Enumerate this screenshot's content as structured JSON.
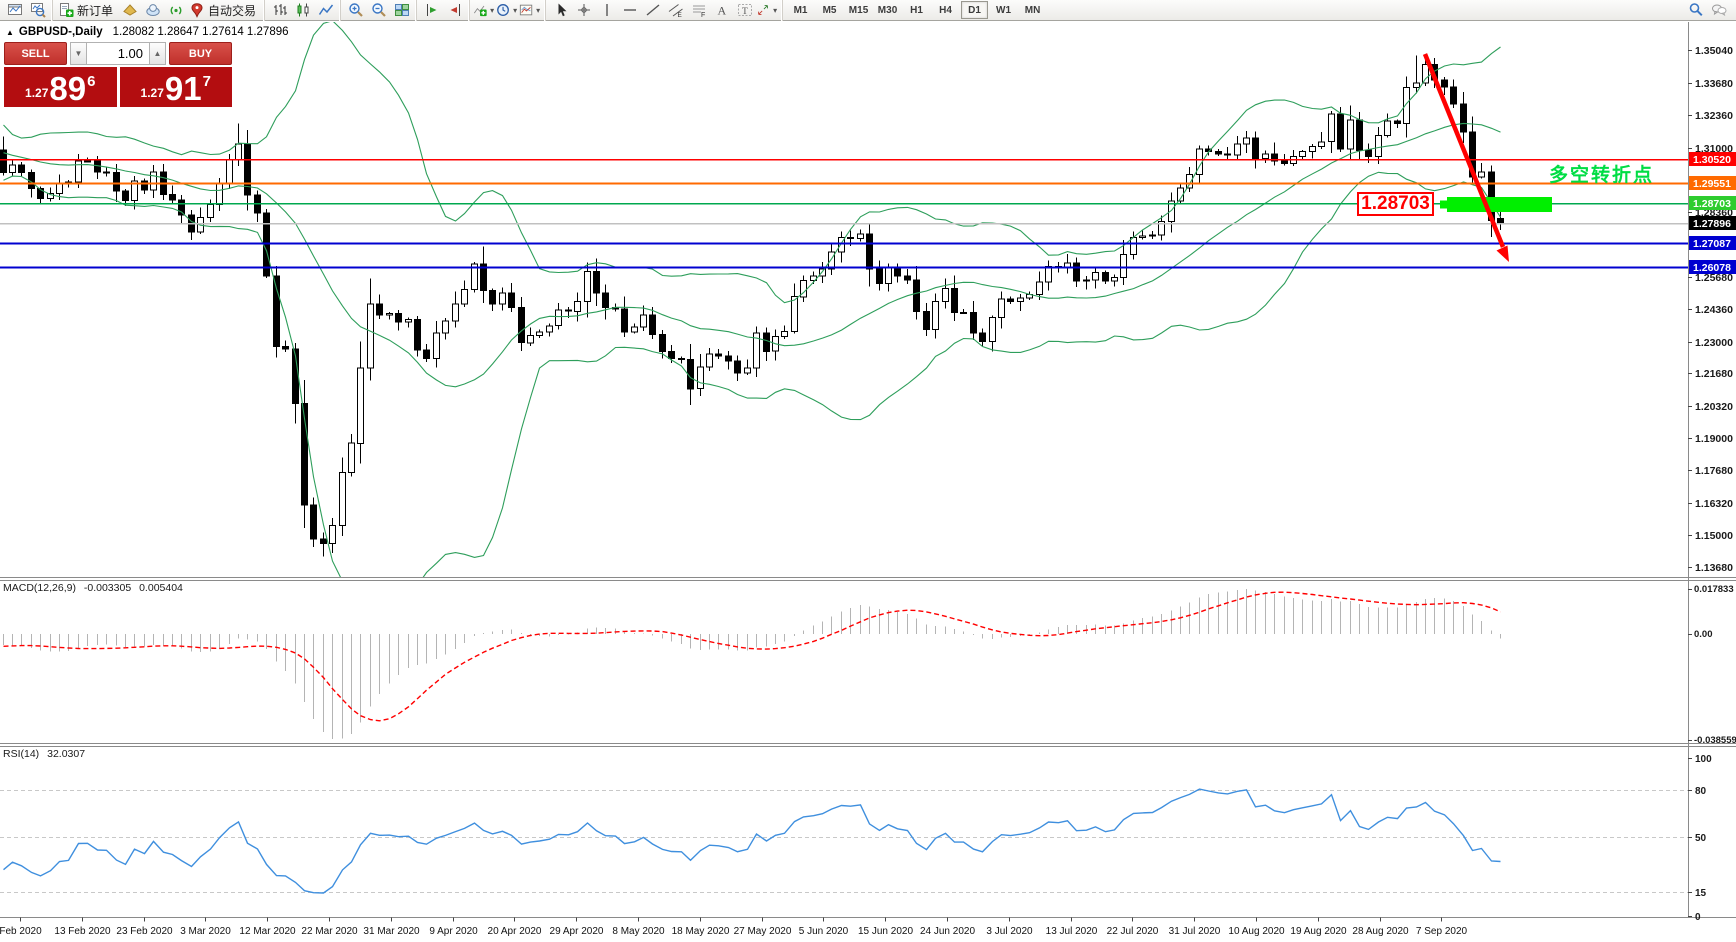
{
  "toolbar": {
    "groups": [
      {
        "items": [
          {
            "name": "new-chart"
          },
          {
            "name": "chart-profiles"
          }
        ]
      },
      {
        "items": [
          {
            "name": "new-order",
            "label": "新订单"
          },
          {
            "name": "expert-advisors"
          },
          {
            "name": "terminal"
          },
          {
            "name": "signals"
          },
          {
            "name": "autotrading",
            "label": "自动交易"
          }
        ]
      },
      {
        "items": [
          {
            "name": "bar-chart"
          },
          {
            "name": "candlestick-chart"
          },
          {
            "name": "line-chart"
          }
        ]
      },
      {
        "items": [
          {
            "name": "zoom-in"
          },
          {
            "name": "zoom-out"
          },
          {
            "name": "tile-windows"
          }
        ]
      },
      {
        "items": [
          {
            "name": "auto-scroll"
          },
          {
            "name": "chart-shift"
          }
        ]
      },
      {
        "items": [
          {
            "name": "indicators",
            "dropdown": true
          },
          {
            "name": "periods",
            "dropdown": true
          },
          {
            "name": "templates",
            "dropdown": true
          }
        ]
      },
      {
        "items": [
          {
            "name": "cursor"
          },
          {
            "name": "crosshair"
          },
          {
            "name": "vertical-line"
          },
          {
            "name": "horizontal-line"
          },
          {
            "name": "trendline"
          },
          {
            "name": "equidistant-channel"
          },
          {
            "name": "fibonacci"
          },
          {
            "name": "text"
          },
          {
            "name": "text-label"
          },
          {
            "name": "arrows",
            "dropdown": true
          }
        ]
      },
      {
        "items": [
          {
            "name": "tf-m1",
            "tf": "M1"
          },
          {
            "name": "tf-m5",
            "tf": "M5"
          },
          {
            "name": "tf-m15",
            "tf": "M15"
          },
          {
            "name": "tf-m30",
            "tf": "M30"
          },
          {
            "name": "tf-h1",
            "tf": "H1"
          },
          {
            "name": "tf-h4",
            "tf": "H4"
          },
          {
            "name": "tf-d1",
            "tf": "D1",
            "active": true
          },
          {
            "name": "tf-w1",
            "tf": "W1"
          },
          {
            "name": "tf-mn",
            "tf": "MN"
          }
        ]
      }
    ],
    "right_items": [
      {
        "name": "search"
      },
      {
        "name": "chat"
      }
    ]
  },
  "chart_header": {
    "collapse_glyph": "▲",
    "symbol_title": "GBPUSD-,Daily",
    "ohlc_text": "1.28082 1.28647 1.27614 1.27896"
  },
  "trade_panel": {
    "sell_label": "SELL",
    "buy_label": "BUY",
    "volume": "1.00",
    "spin_down": "▼",
    "spin_up": "▲",
    "sell_price": {
      "small": "1.27",
      "big": "89",
      "sup": "6"
    },
    "buy_price": {
      "small": "1.27",
      "big": "91",
      "sup": "7"
    }
  },
  "annotations": {
    "pivot_text": "多空转折点",
    "pivot_color": "#00dd44",
    "price_label": "1.28703",
    "label_color": "#ff0000",
    "zone_color": "#00ef00",
    "arrow_color": "#ff0000"
  },
  "indicators": {
    "macd_label": "MACD(12,26,9)",
    "macd_value": "-0.003305",
    "macd_signal_value": "0.005404",
    "rsi_label": "RSI(14)",
    "rsi_value": "32.0307"
  },
  "chart_data": {
    "type": "candlestick",
    "symbol": "GBPUSD",
    "timeframe": "Daily",
    "title": "GBPUSD-,Daily",
    "last_ohlc": {
      "open": 1.28082,
      "high": 1.28647,
      "low": 1.27614,
      "close": 1.27896
    },
    "price_axis": {
      "ticks": [
        1.3504,
        1.3368,
        1.3236,
        1.31,
        1.2836,
        1.2568,
        1.2436,
        1.23,
        1.2168,
        1.2032,
        1.19,
        1.1768,
        1.1632,
        1.15,
        1.1368
      ],
      "tags": [
        {
          "label": "1.30520",
          "price": 1.3052,
          "color": "#ff0000"
        },
        {
          "label": "1.29551",
          "price": 1.29551,
          "color": "#ff6a00"
        },
        {
          "label": "1.28703",
          "price": 1.28703,
          "color": "#2ecc2e"
        },
        {
          "label": "1.27896",
          "price": 1.27896,
          "color": "#000000"
        },
        {
          "label": "1.27087",
          "price": 1.27087,
          "color": "#0000d0"
        },
        {
          "label": "1.26078",
          "price": 1.26078,
          "color": "#0000d0"
        }
      ]
    },
    "hlines": [
      {
        "price": 1.3052,
        "color": "#ff0000",
        "width": 1.5
      },
      {
        "price": 1.29551,
        "color": "#ff6a00",
        "width": 2
      },
      {
        "price": 1.28703,
        "color": "#00a84f",
        "width": 1.5
      },
      {
        "price": 1.27896,
        "color": "#c0c0c0",
        "width": 1.5
      },
      {
        "price": 1.27087,
        "color": "#0000d0",
        "width": 2
      },
      {
        "price": 1.26078,
        "color": "#0000d0",
        "width": 2
      }
    ],
    "date_labels": [
      "Feb 2020",
      "13 Feb 2020",
      "23 Feb 2020",
      "3 Mar 2020",
      "12 Mar 2020",
      "22 Mar 2020",
      "31 Mar 2020",
      "9 Apr 2020",
      "20 Apr 2020",
      "29 Apr 2020",
      "8 May 2020",
      "18 May 2020",
      "27 May 2020",
      "5 Jun 2020",
      "15 Jun 2020",
      "24 Jun 2020",
      "3 Jul 2020",
      "13 Jul 2020",
      "22 Jul 2020",
      "31 Jul 2020",
      "10 Aug 2020",
      "19 Aug 2020",
      "28 Aug 2020",
      "7 Sep 2020"
    ],
    "warmup_closes": [
      1.3257,
      1.3248,
      1.3165,
      1.312,
      1.3085,
      1.3065,
      1.3025,
      1.299,
      1.301,
      1.304,
      1.3095,
      1.311,
      1.3075,
      1.305,
      1.3085,
      1.311,
      1.309,
      1.3063,
      1.3085,
      1.309
    ],
    "closes": [
      1.2998,
      1.303,
      1.2998,
      1.2932,
      1.289,
      1.2912,
      1.2953,
      1.2958,
      1.3045,
      1.3046,
      1.3,
      1.2998,
      1.2922,
      1.2882,
      1.2962,
      1.2925,
      1.3,
      1.2908,
      1.2885,
      1.2823,
      1.2752,
      1.2812,
      1.2866,
      1.2955,
      1.305,
      1.3115,
      1.2905,
      1.283,
      1.257,
      1.228,
      1.227,
      1.2045,
      1.1625,
      1.1485,
      1.1465,
      1.154,
      1.176,
      1.188,
      1.219,
      1.2455,
      1.241,
      1.2415,
      1.238,
      1.239,
      1.2265,
      1.223,
      1.2335,
      1.2385,
      1.2455,
      1.2515,
      1.262,
      1.251,
      1.2455,
      1.25,
      1.244,
      1.2295,
      1.2325,
      1.234,
      1.2365,
      1.243,
      1.2425,
      1.2465,
      1.259,
      1.25,
      1.244,
      1.2435,
      1.234,
      1.236,
      1.241,
      1.233,
      1.2258,
      1.223,
      1.2225,
      1.2105,
      1.2195,
      1.2248,
      1.224,
      1.222,
      1.217,
      1.219,
      1.2335,
      1.226,
      1.232,
      1.2342,
      1.2485,
      1.2553,
      1.257,
      1.26,
      1.267,
      1.273,
      1.2725,
      1.2745,
      1.26,
      1.254,
      1.2607,
      1.257,
      1.2555,
      1.2425,
      1.235,
      1.2465,
      1.252,
      1.242,
      1.242,
      1.2335,
      1.23,
      1.24,
      1.2475,
      1.2465,
      1.248,
      1.2495,
      1.2545,
      1.261,
      1.2605,
      1.2625,
      1.255,
      1.2555,
      1.2585,
      1.255,
      1.2565,
      1.266,
      1.273,
      1.2735,
      1.274,
      1.2795,
      1.288,
      1.2935,
      1.299,
      1.3095,
      1.3085,
      1.3075,
      1.307,
      1.3115,
      1.314,
      1.3055,
      1.3075,
      1.3045,
      1.3035,
      1.3065,
      1.3085,
      1.3105,
      1.3125,
      1.324,
      1.3095,
      1.3215,
      1.309,
      1.3065,
      1.315,
      1.321,
      1.32,
      1.335,
      1.3368,
      1.3445,
      1.338,
      1.3352,
      1.328,
      1.3165,
      1.298,
      1.3,
      1.28,
      1.27896
    ],
    "candle_overrides": {
      "25": {
        "high": 1.32
      },
      "33": {
        "low": 1.1452
      },
      "34": {
        "low": 1.1412
      },
      "150": {
        "high": 1.3482
      },
      "159": {
        "open": 1.28082,
        "high": 1.28647,
        "low": 1.27614,
        "close": 1.27896
      }
    },
    "bollinger": {
      "period": 20,
      "deviation": 2,
      "color": "#2e9e5b"
    },
    "macd": {
      "label": "MACD(12,26,9)",
      "fast": 12,
      "slow": 26,
      "signal": 9,
      "value": "-0.003305",
      "signal_value": "0.005404",
      "axis_max": "0.017833",
      "axis_zero": "0.00",
      "axis_min": "-0.038559",
      "hist_color": "#b4b4b4",
      "signal_color": "#ff0000"
    },
    "rsi": {
      "label": "RSI(14)",
      "period": 14,
      "value": "32.0307",
      "levels": [
        100,
        80,
        50,
        15,
        0
      ],
      "dashed_levels": [
        80,
        50,
        15
      ],
      "color": "#3f8fde"
    }
  }
}
